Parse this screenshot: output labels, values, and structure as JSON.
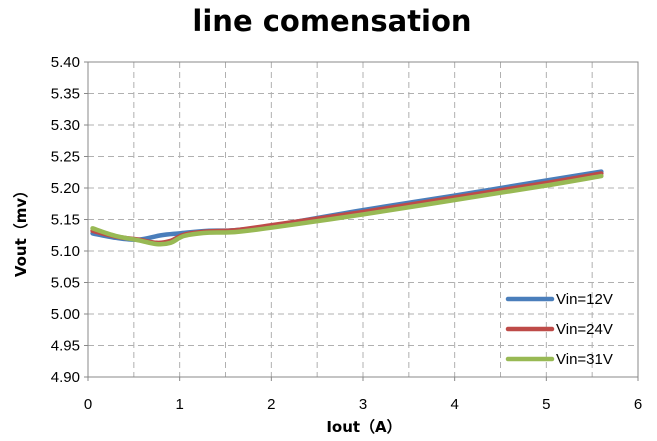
{
  "chart_data": {
    "type": "line",
    "title": "line comensation",
    "xlabel": "Iout（A）",
    "ylabel": "Vout（mv）",
    "xlim": [
      0,
      6
    ],
    "ylim": [
      4.9,
      5.4
    ],
    "x_ticks": [
      "0",
      "1",
      "2",
      "3",
      "4",
      "5",
      "6"
    ],
    "y_ticks": [
      "4.90",
      "4.95",
      "5.00",
      "5.05",
      "5.10",
      "5.15",
      "5.20",
      "5.25",
      "5.30",
      "5.35",
      "5.40"
    ],
    "grid": true,
    "legend_position": "bottom-right",
    "series": [
      {
        "name": "Vin=12V",
        "color": "#4a7ebb",
        "points": [
          [
            0.05,
            5.128
          ],
          [
            0.3,
            5.121
          ],
          [
            0.55,
            5.118
          ],
          [
            0.8,
            5.125
          ],
          [
            1.0,
            5.128
          ],
          [
            1.3,
            5.132
          ],
          [
            1.6,
            5.133
          ],
          [
            2.0,
            5.14
          ],
          [
            3.0,
            5.165
          ],
          [
            4.0,
            5.188
          ],
          [
            5.0,
            5.212
          ],
          [
            5.6,
            5.226
          ]
        ]
      },
      {
        "name": "Vin=24V",
        "color": "#be4b48",
        "points": [
          [
            0.05,
            5.132
          ],
          [
            0.3,
            5.123
          ],
          [
            0.55,
            5.118
          ],
          [
            0.75,
            5.113
          ],
          [
            0.9,
            5.116
          ],
          [
            1.05,
            5.126
          ],
          [
            1.3,
            5.131
          ],
          [
            1.6,
            5.133
          ],
          [
            2.0,
            5.141
          ],
          [
            3.0,
            5.162
          ],
          [
            4.0,
            5.185
          ],
          [
            5.0,
            5.208
          ],
          [
            5.6,
            5.223
          ]
        ]
      },
      {
        "name": "Vin=31V",
        "color": "#98b954",
        "points": [
          [
            0.05,
            5.136
          ],
          [
            0.3,
            5.124
          ],
          [
            0.55,
            5.117
          ],
          [
            0.75,
            5.111
          ],
          [
            0.9,
            5.113
          ],
          [
            1.05,
            5.124
          ],
          [
            1.3,
            5.129
          ],
          [
            1.6,
            5.13
          ],
          [
            2.0,
            5.137
          ],
          [
            3.0,
            5.158
          ],
          [
            4.0,
            5.181
          ],
          [
            5.0,
            5.204
          ],
          [
            5.6,
            5.219
          ]
        ]
      }
    ]
  }
}
